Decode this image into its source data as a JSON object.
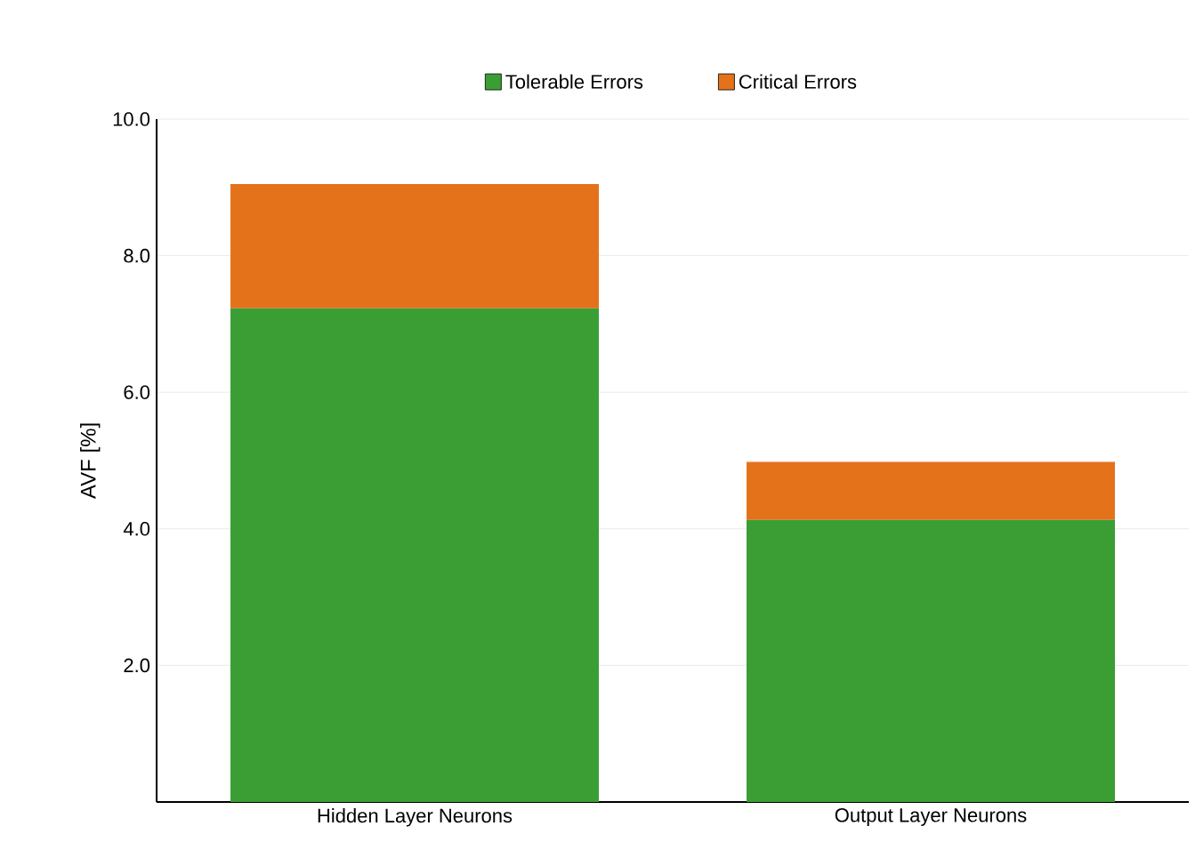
{
  "chart_data": {
    "type": "bar",
    "stacked": true,
    "ylabel": "AVF [%]",
    "categories": [
      "Hidden Layer Neurons",
      "Output Layer Neurons"
    ],
    "series": [
      {
        "name": "Tolerable Errors",
        "color": "#3a9e35",
        "values": [
          7.23,
          4.13
        ]
      },
      {
        "name": "Critical Errors",
        "color": "#e4721b",
        "values": [
          1.82,
          0.85
        ]
      }
    ],
    "ylim": [
      0,
      10
    ],
    "yticks": [
      {
        "value": 2,
        "label": "2.0"
      },
      {
        "value": 4,
        "label": "4.0"
      },
      {
        "value": 6,
        "label": "6.0"
      },
      {
        "value": 8,
        "label": "8.0"
      },
      {
        "value": 10,
        "label": "10.0"
      }
    ],
    "grid": "y",
    "legend": "top"
  }
}
